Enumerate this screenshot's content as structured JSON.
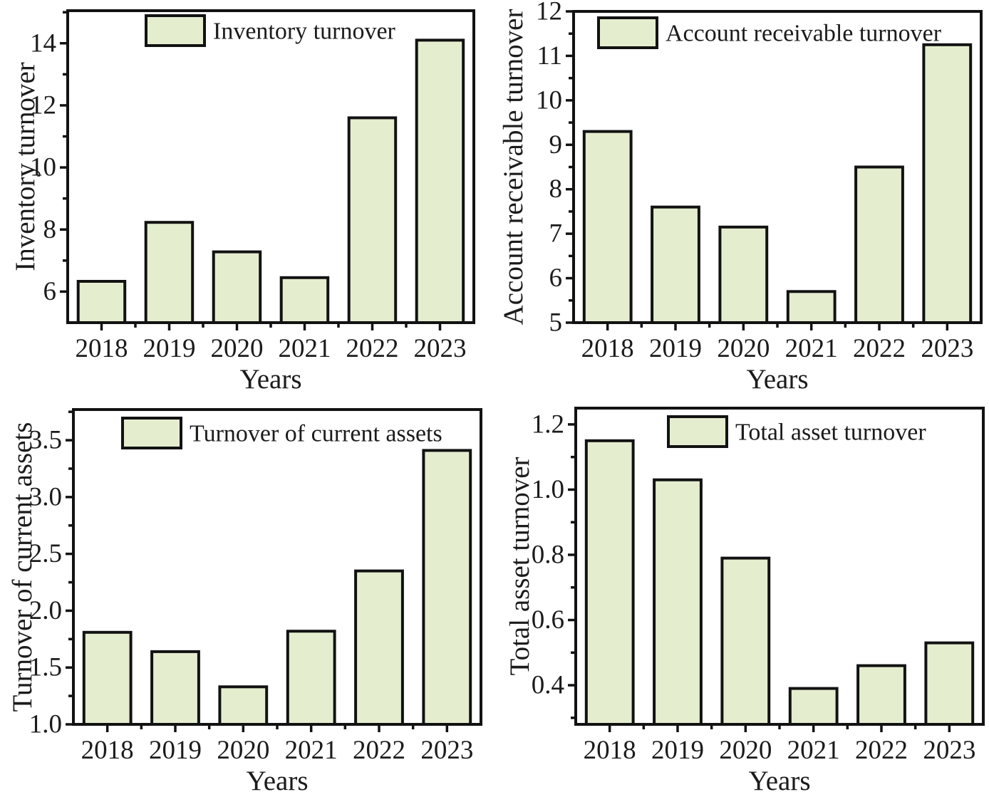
{
  "page": {
    "background": "#ffffff"
  },
  "colors": {
    "bar_fill": "#e4eecf",
    "bar_stroke": "#121212",
    "axis": "#121212",
    "text": "#1b1b1b"
  },
  "chart_data": [
    {
      "type": "bar",
      "panel": "top-left",
      "legend": "Inventory turnover",
      "xlabel": "Years",
      "ylabel": "Inventory turnover",
      "categories": [
        "2018",
        "2019",
        "2020",
        "2021",
        "2022",
        "2023"
      ],
      "values": [
        6.33,
        8.23,
        7.28,
        6.45,
        11.6,
        14.1
      ],
      "ylim": [
        5,
        15.05
      ],
      "yticks": [
        6,
        8,
        10,
        12,
        14
      ],
      "ytick_labels": [
        "6",
        "8",
        "10",
        "12",
        "14"
      ],
      "yminor_step": 1,
      "grid": false,
      "legend_position": "top-inside"
    },
    {
      "type": "bar",
      "panel": "top-right",
      "legend": "Account receivable turnover",
      "xlabel": "Years",
      "ylabel": "Account receivable turnover",
      "categories": [
        "2018",
        "2019",
        "2020",
        "2021",
        "2022",
        "2023"
      ],
      "values": [
        9.3,
        7.6,
        7.15,
        5.7,
        8.5,
        11.25
      ],
      "ylim": [
        5,
        12
      ],
      "yticks": [
        5,
        6,
        7,
        8,
        9,
        10,
        11,
        12
      ],
      "ytick_labels": [
        "5",
        "6",
        "7",
        "8",
        "9",
        "10",
        "11",
        "12"
      ],
      "yminor_step": 0.5,
      "grid": false,
      "legend_position": "top-inside"
    },
    {
      "type": "bar",
      "panel": "bottom-left",
      "legend": "Turnover of current assets",
      "xlabel": "Years",
      "ylabel": "Turnover of current assets",
      "categories": [
        "2018",
        "2019",
        "2020",
        "2021",
        "2022",
        "2023"
      ],
      "values": [
        1.81,
        1.64,
        1.33,
        1.82,
        2.35,
        3.41
      ],
      "ylim": [
        1.0,
        3.77
      ],
      "yticks": [
        1.0,
        1.5,
        2.0,
        2.5,
        3.0,
        3.5
      ],
      "ytick_labels": [
        "1.0",
        "1.5",
        "2.0",
        "2.5",
        "3.0",
        "3.5"
      ],
      "yminor_step": 0.25,
      "grid": false,
      "legend_position": "top-inside"
    },
    {
      "type": "bar",
      "panel": "bottom-right",
      "legend": "Total asset turnover",
      "xlabel": "Years",
      "ylabel": "Total asset turnover",
      "categories": [
        "2018",
        "2019",
        "2020",
        "2021",
        "2022",
        "2023"
      ],
      "values": [
        1.15,
        1.03,
        0.79,
        0.39,
        0.46,
        0.53
      ],
      "ylim": [
        0.28,
        1.25
      ],
      "yticks": [
        0.4,
        0.6,
        0.8,
        1.0,
        1.2
      ],
      "ytick_labels": [
        "0.4",
        "0.6",
        "0.8",
        "1.0",
        "1.2"
      ],
      "yminor_step": 0.1,
      "grid": false,
      "legend_position": "top-inside"
    }
  ]
}
